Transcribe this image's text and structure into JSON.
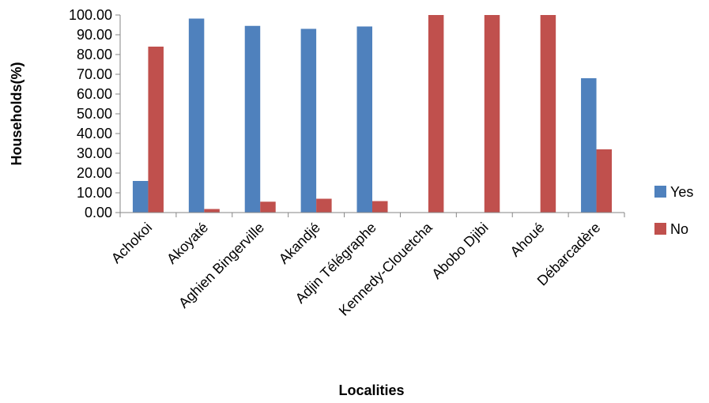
{
  "chart_data": {
    "type": "bar",
    "title": "",
    "xlabel": "Localities",
    "ylabel": "Households(%)",
    "ylim": [
      0,
      100
    ],
    "ytick_step": 10,
    "ytick_format_decimals": 2,
    "grid": false,
    "legend_position": "right",
    "categories": [
      "Achokoi",
      "Akoyaté",
      "Aghien Bingerville",
      "Akandjé",
      "Adjin Télégraphe",
      "Kennedy-Clouetcha",
      "Abobo Djibi",
      "Ahoué",
      "Débarcadère"
    ],
    "series": [
      {
        "name": "Yes",
        "color": "#4F81BD",
        "values": [
          16,
          98.2,
          94.5,
          93,
          94.2,
          0,
          0,
          0,
          68
        ]
      },
      {
        "name": "No",
        "color": "#C0504D",
        "values": [
          84,
          1.8,
          5.5,
          7,
          5.8,
          100,
          100,
          100,
          32
        ]
      }
    ]
  }
}
